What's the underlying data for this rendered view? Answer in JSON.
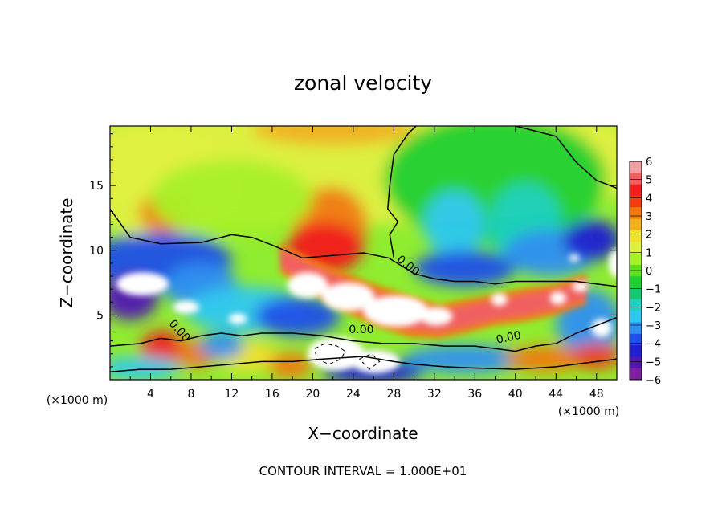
{
  "chart_data": {
    "type": "heatmap",
    "title": "zonal velocity",
    "xlabel": "X−coordinate",
    "ylabel": "Z−coordinate",
    "x_unit_left": "(×1000 m)",
    "x_unit_right": "(×1000 m)",
    "footer": "CONTOUR INTERVAL = 1.000E+01",
    "xlim": [
      0,
      50
    ],
    "ylim": [
      0,
      19.6
    ],
    "x_ticks": [
      4,
      8,
      12,
      16,
      20,
      24,
      28,
      32,
      36,
      40,
      44,
      48
    ],
    "y_ticks": [
      5,
      10,
      15
    ],
    "x_tick_labels": [
      "4",
      "8",
      "12",
      "16",
      "20",
      "24",
      "28",
      "32",
      "36",
      "40",
      "44",
      "48"
    ],
    "y_tick_labels": [
      "5",
      "10",
      "15"
    ],
    "colorbar": {
      "min": -6,
      "max": 6,
      "labels": [
        "6",
        "5",
        "4",
        "3",
        "2",
        "1",
        "0",
        "−1",
        "−2",
        "−3",
        "−4",
        "−5",
        "−6"
      ],
      "colors": [
        "#f0a0a0",
        "#f06060",
        "#f02020",
        "#f04010",
        "#f07a10",
        "#f0b020",
        "#f0e030",
        "#e0f040",
        "#a8f028",
        "#60e020",
        "#20d030",
        "#18c870",
        "#20d0c0",
        "#30c8f0",
        "#3090f0",
        "#2050e8",
        "#2020d0",
        "#5018b0",
        "#8020a0"
      ]
    },
    "contour_labels": [
      {
        "text": "0.00",
        "x": 29.2,
        "y": 8.6,
        "angle": 38
      },
      {
        "text": "0.00",
        "x": 6.6,
        "y": 3.6,
        "angle": 48
      },
      {
        "text": "0.00",
        "x": 24.8,
        "y": 3.6,
        "angle": 0
      },
      {
        "text": "0.00",
        "x": 39.4,
        "y": 3.0,
        "angle": -12
      }
    ],
    "contours_zero": [
      [
        [
          0,
          13.2
        ],
        [
          2,
          11.0
        ],
        [
          5,
          10.5
        ],
        [
          9,
          10.6
        ],
        [
          12,
          11.2
        ],
        [
          14,
          11.0
        ],
        [
          16,
          10.4
        ],
        [
          19,
          9.4
        ],
        [
          22,
          9.6
        ],
        [
          25,
          9.8
        ],
        [
          27.5,
          9.4
        ],
        [
          30,
          8.2
        ],
        [
          32,
          7.8
        ],
        [
          34,
          7.6
        ],
        [
          36,
          7.6
        ],
        [
          38,
          7.4
        ],
        [
          40,
          7.6
        ],
        [
          43,
          7.6
        ],
        [
          46,
          7.6
        ],
        [
          48,
          7.4
        ],
        [
          50,
          7.2
        ]
      ],
      [
        [
          28,
          9.4
        ],
        [
          27.6,
          11.2
        ],
        [
          28.4,
          12.2
        ],
        [
          27.4,
          13.2
        ],
        [
          27.6,
          15.0
        ],
        [
          28,
          17.4
        ],
        [
          29.4,
          19.0
        ],
        [
          30.2,
          19.6
        ]
      ],
      [
        [
          40,
          19.6
        ],
        [
          42,
          19.2
        ],
        [
          44,
          18.8
        ],
        [
          45,
          17.8
        ],
        [
          46,
          16.8
        ],
        [
          48,
          15.4
        ],
        [
          50,
          14.8
        ]
      ],
      [
        [
          0,
          2.6
        ],
        [
          3,
          2.8
        ],
        [
          5,
          3.2
        ],
        [
          7,
          3.0
        ],
        [
          9,
          3.4
        ],
        [
          11,
          3.6
        ],
        [
          13,
          3.4
        ],
        [
          15,
          3.6
        ],
        [
          18,
          3.6
        ],
        [
          21,
          3.4
        ],
        [
          24,
          3.0
        ],
        [
          27,
          2.8
        ],
        [
          30,
          2.8
        ],
        [
          33,
          2.6
        ],
        [
          36,
          2.6
        ],
        [
          38,
          2.4
        ],
        [
          40,
          2.2
        ],
        [
          42,
          2.6
        ],
        [
          44,
          2.8
        ],
        [
          46,
          3.6
        ],
        [
          48,
          4.2
        ],
        [
          50,
          4.8
        ]
      ],
      [
        [
          0,
          0.6
        ],
        [
          3,
          0.8
        ],
        [
          6,
          0.8
        ],
        [
          9,
          1.0
        ],
        [
          12,
          1.2
        ],
        [
          15,
          1.4
        ],
        [
          18,
          1.4
        ],
        [
          21,
          1.6
        ],
        [
          25,
          1.8
        ],
        [
          28,
          1.4
        ],
        [
          30,
          1.2
        ],
        [
          33,
          1.0
        ],
        [
          36,
          0.9
        ],
        [
          40,
          0.8
        ],
        [
          44,
          1.0
        ],
        [
          48,
          1.4
        ],
        [
          50,
          1.6
        ]
      ]
    ],
    "contours_dashed": [
      [
        [
          20.2,
          2.4
        ],
        [
          21.2,
          2.8
        ],
        [
          22.4,
          2.6
        ],
        [
          23.2,
          2.2
        ],
        [
          22.8,
          1.6
        ],
        [
          21.6,
          1.2
        ],
        [
          20.4,
          1.6
        ],
        [
          20.2,
          2.4
        ]
      ],
      [
        [
          24.6,
          1.6
        ],
        [
          25.8,
          2.0
        ],
        [
          26.6,
          1.4
        ],
        [
          25.6,
          0.8
        ],
        [
          24.6,
          1.6
        ]
      ]
    ],
    "field_blobs": [
      {
        "cx": 25,
        "cy": 17,
        "rx": 30,
        "ry": 5,
        "value": 1.6
      },
      {
        "cx": 5,
        "cy": 15,
        "rx": 8,
        "ry": 4,
        "value": 1.3
      },
      {
        "cx": 22,
        "cy": 19.3,
        "rx": 8,
        "ry": 1.2,
        "value": 2.5
      },
      {
        "cx": 5.5,
        "cy": 12.9,
        "rx": 2.6,
        "ry": 1.6,
        "value": 3.1
      },
      {
        "cx": 21.8,
        "cy": 11.9,
        "rx": 3.6,
        "ry": 3.0,
        "value": 3.4
      },
      {
        "cx": 21.2,
        "cy": 10.2,
        "rx": 3.8,
        "ry": 2.0,
        "value": 4.4
      },
      {
        "cx": 12,
        "cy": 14,
        "rx": 8,
        "ry": 3,
        "value": 0.9
      },
      {
        "cx": 38,
        "cy": 15.5,
        "rx": 11,
        "ry": 5,
        "value": -0.8
      },
      {
        "cx": 34,
        "cy": 12,
        "rx": 3,
        "ry": 2.6,
        "value": -2.4
      },
      {
        "cx": 41,
        "cy": 12,
        "rx": 3.6,
        "ry": 3.2,
        "value": -2.2
      },
      {
        "cx": 35,
        "cy": 8.6,
        "rx": 5,
        "ry": 1.4,
        "value": -4.2
      },
      {
        "cx": 43.5,
        "cy": 9.8,
        "rx": 4.6,
        "ry": 1.8,
        "value": -3.6
      },
      {
        "cx": 47.5,
        "cy": 10.8,
        "rx": 2.8,
        "ry": 1.6,
        "value": -4.8
      },
      {
        "cx": 5,
        "cy": 9.2,
        "rx": 7,
        "ry": 2.2,
        "value": -4.2
      },
      {
        "cx": 2,
        "cy": 6.4,
        "rx": 2.8,
        "ry": 1.8,
        "value": -5.2
      },
      {
        "cx": 9,
        "cy": 7.2,
        "rx": 3.6,
        "ry": 1.8,
        "value": -3.2
      },
      {
        "cx": 13.5,
        "cy": 5.4,
        "rx": 6,
        "ry": 1.8,
        "value": -2.4
      },
      {
        "cx": 18.5,
        "cy": 4.9,
        "rx": 4.2,
        "ry": 1.5,
        "value": -4.3
      },
      {
        "cx": 47.2,
        "cy": 4.4,
        "rx": 3.2,
        "ry": 2.6,
        "value": -3.0
      },
      {
        "cx": 5.2,
        "cy": 2.4,
        "rx": 2.2,
        "ry": 1.4,
        "value": 4.4
      },
      {
        "cx": 8.6,
        "cy": 2.0,
        "rx": 2.2,
        "ry": 1.1,
        "value": 3.2
      },
      {
        "cx": 13.5,
        "cy": 1.8,
        "rx": 3.2,
        "ry": 1.2,
        "value": 2.2
      },
      {
        "cx": 17.8,
        "cy": 1.1,
        "rx": 2.2,
        "ry": 1.0,
        "value": 3.6
      },
      {
        "cx": 11,
        "cy": 2.6,
        "rx": 2.2,
        "ry": 1.0,
        "value": -3.4
      },
      {
        "cx": 3,
        "cy": 0.9,
        "rx": 4,
        "ry": 0.9,
        "value": -2.8
      },
      {
        "cx": 26,
        "cy": 0.6,
        "rx": 5,
        "ry": 0.9,
        "value": -4.6
      },
      {
        "cx": 35,
        "cy": 1.6,
        "rx": 6,
        "ry": 1.1,
        "value": -3.0
      },
      {
        "cx": 43,
        "cy": 1.6,
        "rx": 4,
        "ry": 1.0,
        "value": 3.4
      },
      {
        "cx": 48,
        "cy": 1.8,
        "rx": 2.4,
        "ry": 1.0,
        "value": 3.8
      }
    ],
    "jet_band": [
      {
        "x": 16.8,
        "y": 9.4,
        "w": 1.1
      },
      {
        "x": 19.5,
        "y": 8.2,
        "w": 1.3
      },
      {
        "x": 22.5,
        "y": 7.0,
        "w": 1.5
      },
      {
        "x": 26,
        "y": 5.8,
        "w": 1.6
      },
      {
        "x": 29.5,
        "y": 4.9,
        "w": 1.6
      },
      {
        "x": 32.5,
        "y": 4.5,
        "w": 1.3
      },
      {
        "x": 35,
        "y": 4.9,
        "w": 1.3
      },
      {
        "x": 38,
        "y": 5.4,
        "w": 1.2
      },
      {
        "x": 41,
        "y": 5.8,
        "w": 1.3
      },
      {
        "x": 44,
        "y": 6.2,
        "w": 1.2
      },
      {
        "x": 47,
        "y": 7.0,
        "w": 1.2
      }
    ],
    "white_regions": [
      {
        "cx": 19.5,
        "cy": 7.3,
        "rx": 2.0,
        "ry": 1.0
      },
      {
        "cx": 23.5,
        "cy": 6.4,
        "rx": 2.6,
        "ry": 1.1
      },
      {
        "cx": 28.2,
        "cy": 5.3,
        "rx": 3.2,
        "ry": 1.2
      },
      {
        "cx": 32.2,
        "cy": 4.9,
        "rx": 1.6,
        "ry": 0.7
      },
      {
        "cx": 22.3,
        "cy": 2.0,
        "rx": 2.8,
        "ry": 1.3
      },
      {
        "cx": 26.2,
        "cy": 1.4,
        "rx": 2.4,
        "ry": 0.9
      },
      {
        "cx": 3.2,
        "cy": 7.4,
        "rx": 2.6,
        "ry": 0.9
      },
      {
        "cx": 7.5,
        "cy": 5.6,
        "rx": 1.3,
        "ry": 0.5
      },
      {
        "cx": 12.6,
        "cy": 4.7,
        "rx": 0.9,
        "ry": 0.4
      },
      {
        "cx": 48.5,
        "cy": 4.0,
        "rx": 1.0,
        "ry": 0.7
      },
      {
        "cx": 50,
        "cy": 9.0,
        "rx": 0.8,
        "ry": 1.1
      },
      {
        "cx": 45.8,
        "cy": 9.4,
        "rx": 0.5,
        "ry": 0.3
      },
      {
        "cx": 38.4,
        "cy": 6.2,
        "rx": 0.8,
        "ry": 0.5
      },
      {
        "cx": 44.2,
        "cy": 6.3,
        "rx": 0.8,
        "ry": 0.5
      },
      {
        "cx": 46.4,
        "cy": 7.2,
        "rx": 0.8,
        "ry": 0.4
      }
    ],
    "grid": false
  }
}
